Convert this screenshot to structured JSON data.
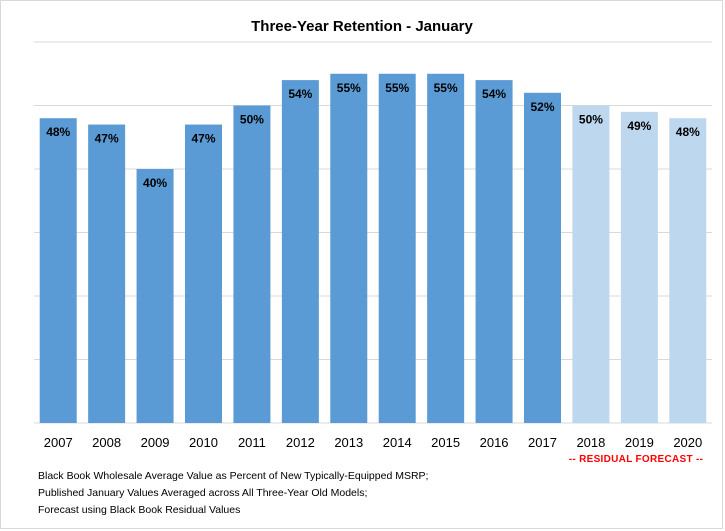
{
  "colors": {
    "actual": "#5b9bd5",
    "forecast": "#bdd7ee",
    "grid": "#d9d9d9",
    "forecast_note": "#ff0000"
  },
  "chart_data": {
    "type": "bar",
    "title": "Three-Year Retention - January",
    "xlabel": "",
    "ylabel": "",
    "ylim": [
      0,
      60
    ],
    "grid": true,
    "categories": [
      "2007",
      "2008",
      "2009",
      "2010",
      "2011",
      "2012",
      "2013",
      "2014",
      "2015",
      "2016",
      "2017",
      "2018",
      "2019",
      "2020"
    ],
    "series": [
      {
        "values": [
          48,
          47,
          40,
          47,
          50,
          54,
          55,
          55,
          55,
          54,
          52,
          50,
          49,
          48
        ],
        "labels": [
          "48%",
          "47%",
          "40%",
          "47%",
          "50%",
          "54%",
          "55%",
          "55%",
          "55%",
          "54%",
          "52%",
          "50%",
          "49%",
          "48%"
        ],
        "forecast": [
          false,
          false,
          false,
          false,
          false,
          false,
          false,
          false,
          false,
          false,
          false,
          true,
          true,
          true
        ]
      }
    ],
    "annotations": {
      "forecast_note": "-- RESIDUAL FORECAST --"
    }
  },
  "notes": [
    "Black Book Wholesale Average Value as Percent of New Typically-Equipped MSRP;",
    "Published January Values Averaged across All Three-Year Old Models;",
    "Forecast using Black Book Residual Values"
  ]
}
